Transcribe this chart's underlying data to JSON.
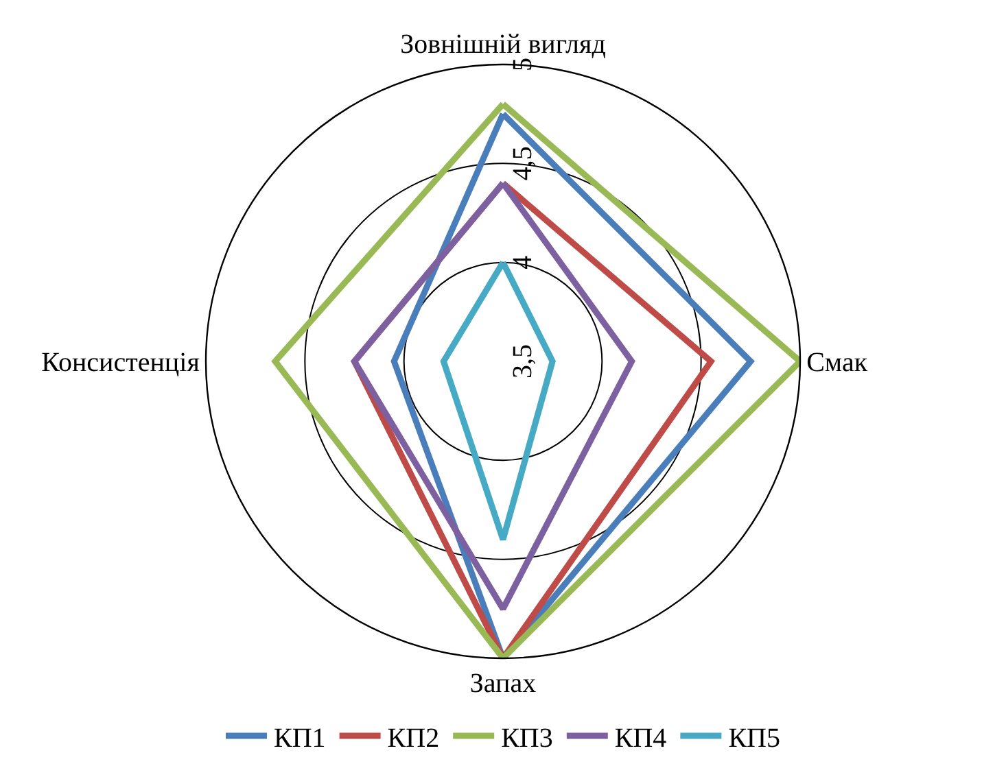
{
  "chart_data": {
    "type": "radar",
    "categories": [
      "Зовнішній вигляд",
      "Смак",
      "Запах",
      "Консистенція"
    ],
    "series": [
      {
        "name": "КП1",
        "color": "#4a7ebb",
        "values": [
          4.75,
          4.75,
          5.0,
          4.05
        ]
      },
      {
        "name": "КП2",
        "color": "#be4b48",
        "values": [
          4.4,
          4.55,
          5.0,
          4.25
        ]
      },
      {
        "name": "КП3",
        "color": "#98b954",
        "values": [
          4.8,
          5.0,
          5.0,
          4.65
        ]
      },
      {
        "name": "КП4",
        "color": "#7d60a0",
        "values": [
          4.4,
          4.15,
          4.75,
          4.25
        ]
      },
      {
        "name": "КП5",
        "color": "#46aac5",
        "values": [
          4.0,
          3.75,
          4.4,
          3.8
        ]
      }
    ],
    "ylim": [
      3.5,
      5
    ],
    "yticks": [
      {
        "value": 3.5,
        "label": "3,5"
      },
      4,
      {
        "value": 4.5,
        "label": "4,5"
      },
      5
    ],
    "legend": "bottom",
    "marker": "none",
    "line_style": "solid",
    "grid": true
  }
}
